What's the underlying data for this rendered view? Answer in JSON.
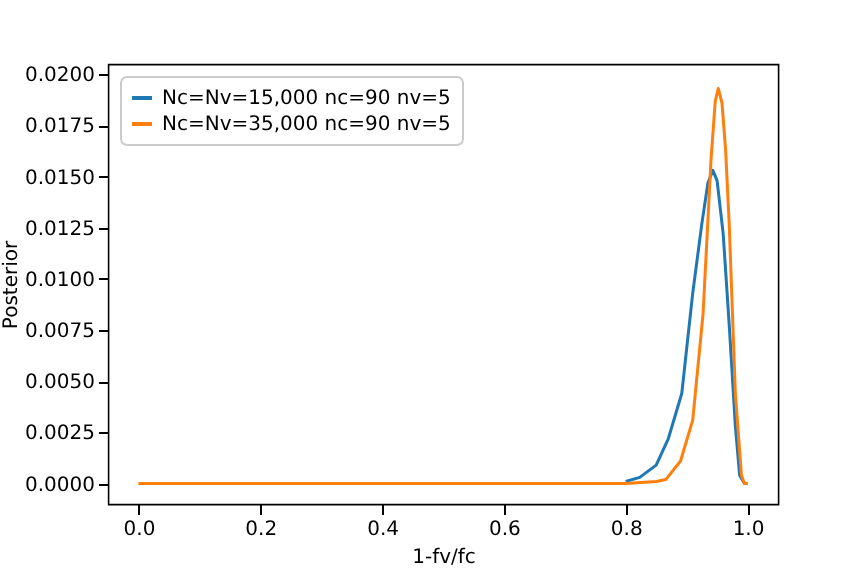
{
  "chart_data": {
    "type": "line",
    "xlabel": "1-fv/fc",
    "ylabel": "Posterior",
    "legend": "top left",
    "grid": false,
    "marker": "none",
    "line_style": "solid",
    "xlim": [
      -0.05,
      1.05
    ],
    "ylim": [
      -0.001,
      0.0205
    ],
    "xticks": [
      {
        "value": 0,
        "label": "0.0"
      },
      {
        "value": 0.2,
        "label": "0.2"
      },
      {
        "value": 0.4,
        "label": "0.4"
      },
      {
        "value": 0.6,
        "label": "0.6"
      },
      {
        "value": 0.8,
        "label": "0.8"
      },
      {
        "value": 1,
        "label": "1.0"
      }
    ],
    "yticks": [
      {
        "value": 0,
        "label": "0.0000"
      },
      {
        "value": 0.0025,
        "label": "0.0025"
      },
      {
        "value": 0.005,
        "label": "0.0050"
      },
      {
        "value": 0.0075,
        "label": "0.0075"
      },
      {
        "value": 0.01,
        "label": "0.0100"
      },
      {
        "value": 0.0125,
        "label": "0.0125"
      },
      {
        "value": 0.015,
        "label": "0.0150"
      },
      {
        "value": 0.0175,
        "label": "0.0175"
      },
      {
        "value": 0.02,
        "label": "0.0200"
      }
    ],
    "series": [
      {
        "name": "Nc=Nv=15,000 nc=90 nv=5",
        "color": "#1f77b4",
        "x": [
          0.8,
          0.823,
          0.85,
          0.87,
          0.892,
          0.91,
          0.925,
          0.935,
          0.943,
          0.95,
          0.96,
          0.97,
          0.98,
          0.987,
          0.995,
          1
        ],
        "values": [
          0.0001,
          0.0003,
          0.0009,
          0.0022,
          0.0044,
          0.0093,
          0.0127,
          0.0147,
          0.0153,
          0.0148,
          0.0122,
          0.0077,
          0.0028,
          0.0004,
          0,
          0
        ]
      },
      {
        "name": "Nc=Nv=35,000 nc=90 nv=5",
        "color": "#ff7f0e",
        "x": [
          0,
          0.2,
          0.4,
          0.6,
          0.8,
          0.85,
          0.866,
          0.89,
          0.91,
          0.927,
          0.94,
          0.947,
          0.952,
          0.958,
          0.964,
          0.97,
          0.98,
          0.99,
          0.995,
          1
        ],
        "values": [
          0,
          0,
          0,
          0,
          0,
          0.0001,
          0.0002,
          0.0011,
          0.0031,
          0.0083,
          0.0158,
          0.0187,
          0.0193,
          0.0186,
          0.0163,
          0.0126,
          0.0044,
          0.0004,
          0,
          0
        ]
      }
    ]
  }
}
